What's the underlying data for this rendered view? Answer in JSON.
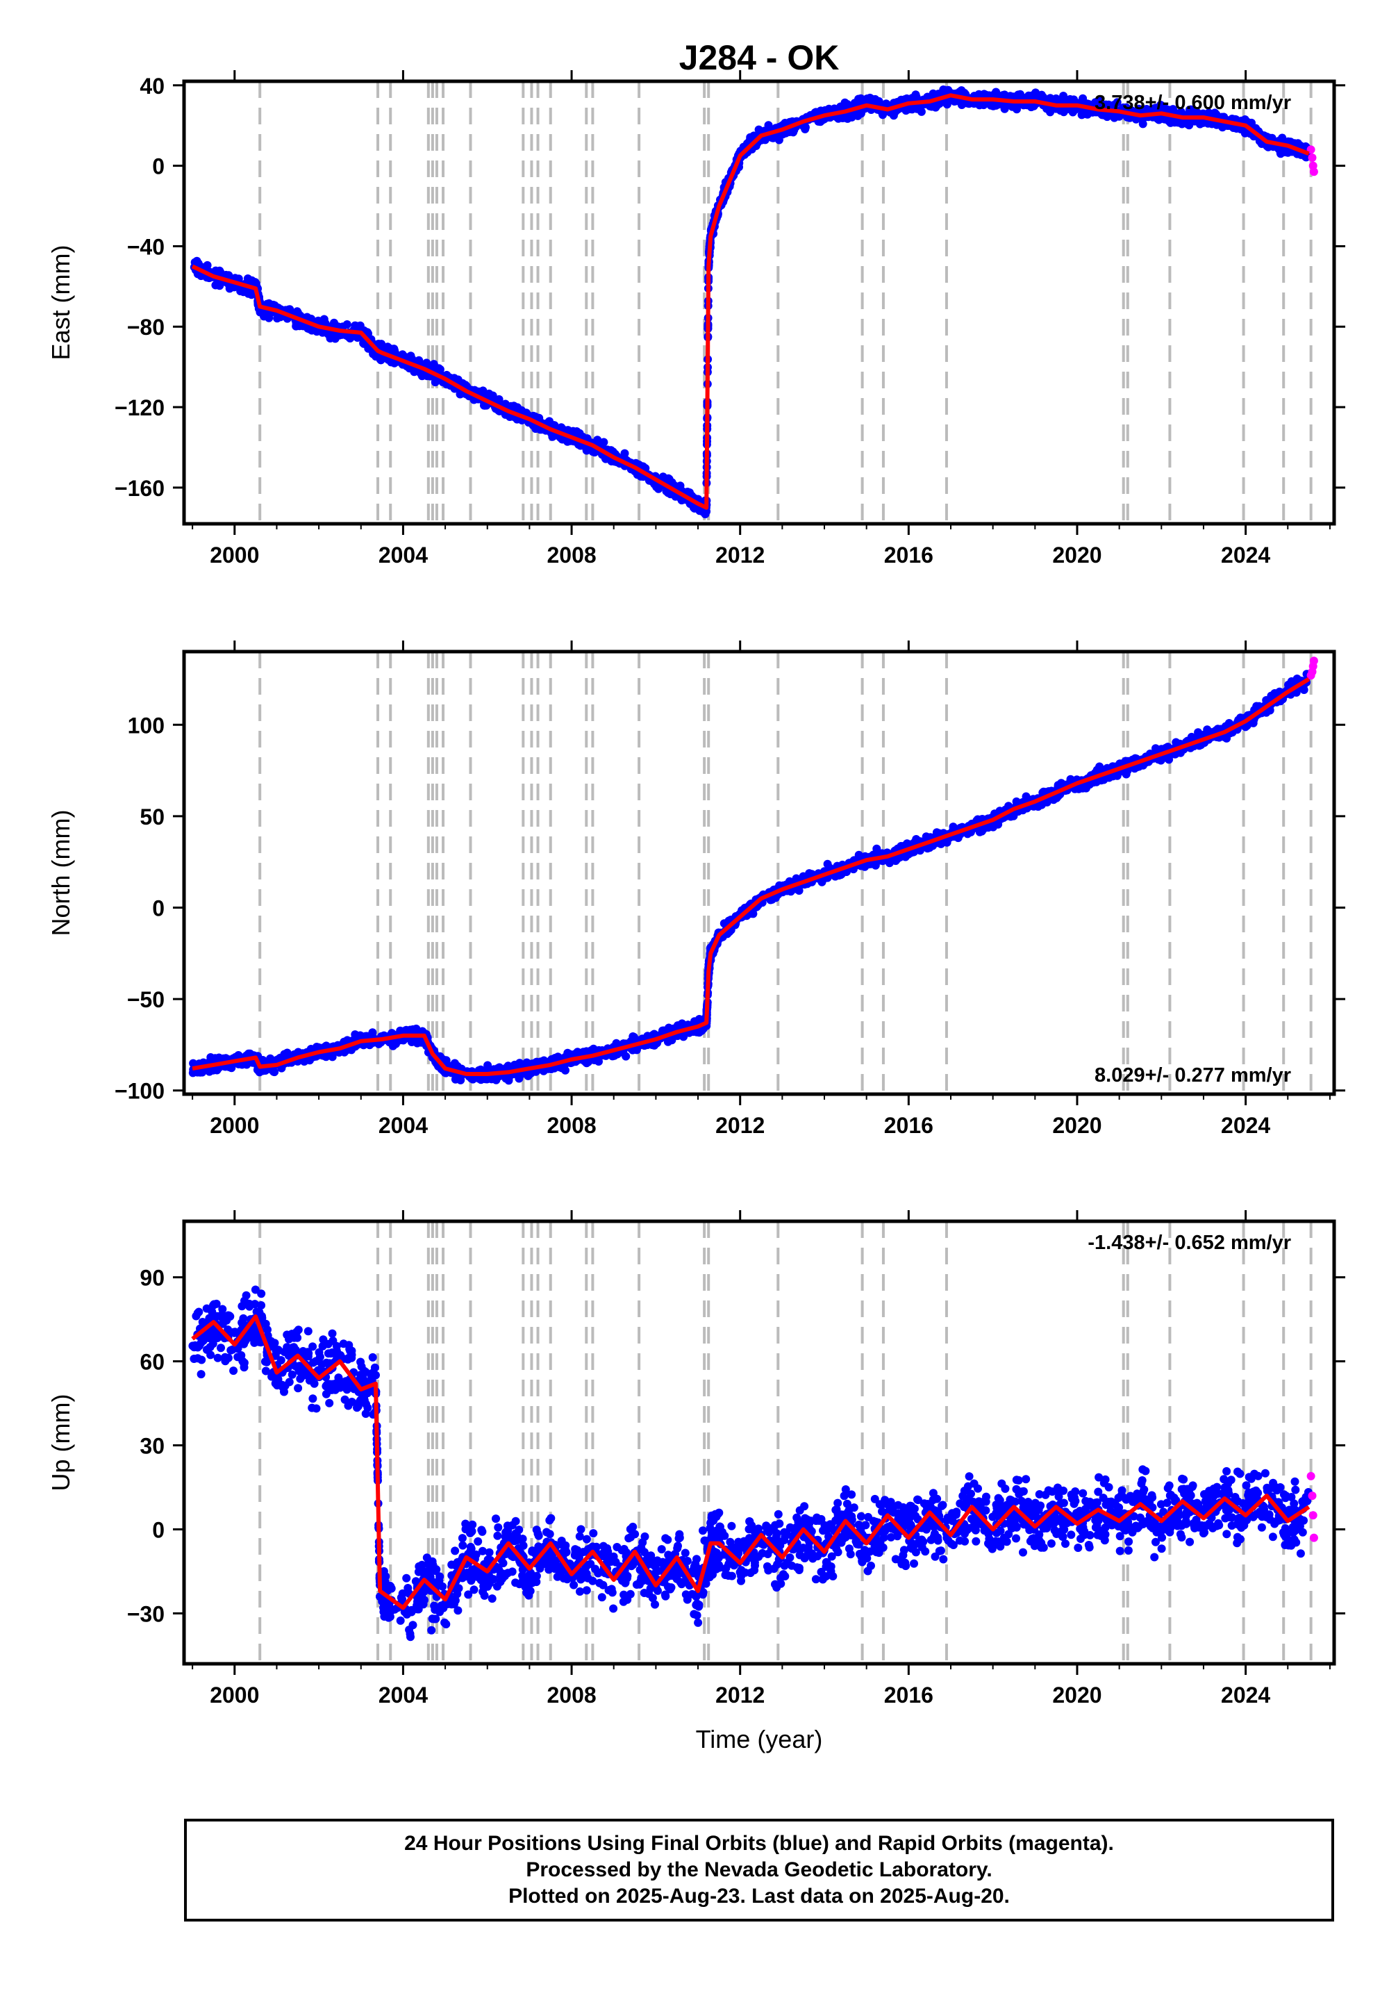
{
  "title": "J284 - OK",
  "xlabel": "Time (year)",
  "footer": {
    "line1": "24 Hour Positions Using Final Orbits (blue) and Rapid Orbits (magenta).",
    "line2": "Processed by the Nevada Geodetic Laboratory.",
    "line3": "Plotted on 2025-Aug-23. Last data on 2025-Aug-20."
  },
  "colors": {
    "final_orbits": "#0000ff",
    "rapid_orbits": "#ff00ff",
    "model": "#ff0000",
    "event_lines": "#bbbbbb"
  },
  "chart_data": [
    {
      "type": "scatter",
      "ylabel": "East (mm)",
      "rate_label": "3.738+/- 0.600 mm/yr",
      "rate_position": "top-right",
      "xlim": [
        1998.8,
        2026.1
      ],
      "ylim": [
        -178,
        42
      ],
      "x_ticks": [
        2000,
        2004,
        2008,
        2012,
        2016,
        2020,
        2024
      ],
      "y_ticks": [
        40,
        0,
        -40,
        -80,
        -120,
        -160
      ],
      "y_tick_labels": [
        "40",
        "0",
        "−40",
        "−80",
        "−120",
        "−160"
      ],
      "event_lines": [
        2000.6,
        2003.4,
        2003.7,
        2004.6,
        2004.7,
        2004.8,
        2004.95,
        2005.6,
        2006.85,
        2007.05,
        2007.2,
        2007.5,
        2008.35,
        2008.5,
        2009.6,
        2011.15,
        2011.25,
        2012.9,
        2014.9,
        2015.4,
        2016.9,
        2021.1,
        2021.2,
        2022.2,
        2023.95,
        2024.9,
        2025.55
      ],
      "series": [
        {
          "name": "Final Orbits (blue)",
          "color": "#0000ff",
          "x": [
            1999.0,
            1999.5,
            2000.0,
            2000.5,
            2000.6,
            2001.0,
            2001.5,
            2002.0,
            2002.5,
            2003.0,
            2003.4,
            2003.5,
            2004.0,
            2004.5,
            2005.0,
            2005.5,
            2006.0,
            2006.5,
            2007.0,
            2007.5,
            2008.0,
            2008.5,
            2009.0,
            2009.5,
            2010.0,
            2010.5,
            2011.0,
            2011.2,
            2011.25,
            2011.3,
            2011.5,
            2011.8,
            2012.0,
            2012.5,
            2013.0,
            2013.5,
            2014.0,
            2014.5,
            2015.0,
            2015.5,
            2016.0,
            2016.5,
            2017.0,
            2017.5,
            2018.0,
            2018.5,
            2019.0,
            2019.5,
            2020.0,
            2020.5,
            2021.0,
            2021.5,
            2022.0,
            2022.5,
            2023.0,
            2023.5,
            2024.0,
            2024.5,
            2025.0,
            2025.5
          ],
          "y": [
            -50,
            -55,
            -58,
            -61,
            -70,
            -72,
            -76,
            -80,
            -82,
            -83,
            -92,
            -93,
            -97,
            -101,
            -106,
            -112,
            -117,
            -122,
            -126,
            -131,
            -135,
            -139,
            -145,
            -150,
            -156,
            -162,
            -168,
            -170,
            -50,
            -35,
            -20,
            -5,
            5,
            15,
            18,
            22,
            25,
            27,
            30,
            28,
            31,
            32,
            35,
            33,
            33,
            32,
            32,
            30,
            30,
            28,
            27,
            25,
            26,
            24,
            24,
            22,
            20,
            12,
            10,
            6
          ]
        },
        {
          "name": "Rapid Orbits (magenta)",
          "color": "#ff00ff",
          "x": [
            2025.55,
            2025.58,
            2025.6,
            2025.62
          ],
          "y": [
            8,
            4,
            0,
            -3
          ]
        }
      ]
    },
    {
      "type": "scatter",
      "ylabel": "North (mm)",
      "rate_label": "8.029+/- 0.277 mm/yr",
      "rate_position": "bottom-right",
      "xlim": [
        1998.8,
        2026.1
      ],
      "ylim": [
        -102,
        140
      ],
      "x_ticks": [
        2000,
        2004,
        2008,
        2012,
        2016,
        2020,
        2024
      ],
      "y_ticks": [
        100,
        50,
        0,
        -50,
        -100
      ],
      "y_tick_labels": [
        "100",
        "50",
        "0",
        "−50",
        "−100"
      ],
      "event_lines": [
        2000.6,
        2003.4,
        2003.7,
        2004.6,
        2004.7,
        2004.8,
        2004.95,
        2005.6,
        2006.85,
        2007.05,
        2007.2,
        2007.5,
        2008.35,
        2008.5,
        2009.6,
        2011.15,
        2011.25,
        2012.9,
        2014.9,
        2015.4,
        2016.9,
        2021.1,
        2021.2,
        2022.2,
        2023.95,
        2024.9,
        2025.55
      ],
      "series": [
        {
          "name": "Final Orbits (blue)",
          "color": "#0000ff",
          "x": [
            1999.0,
            1999.5,
            2000.0,
            2000.5,
            2000.6,
            2001.0,
            2001.5,
            2002.0,
            2002.5,
            2003.0,
            2003.5,
            2004.0,
            2004.5,
            2004.7,
            2005.0,
            2005.5,
            2006.0,
            2006.5,
            2007.0,
            2007.5,
            2008.0,
            2008.5,
            2009.0,
            2009.5,
            2010.0,
            2010.5,
            2011.0,
            2011.2,
            2011.25,
            2011.3,
            2011.5,
            2012.0,
            2012.5,
            2013.0,
            2013.5,
            2014.0,
            2014.5,
            2015.0,
            2015.5,
            2016.0,
            2016.5,
            2017.0,
            2017.5,
            2018.0,
            2018.5,
            2019.0,
            2019.5,
            2020.0,
            2020.5,
            2021.0,
            2021.5,
            2022.0,
            2022.5,
            2023.0,
            2023.5,
            2024.0,
            2024.5,
            2025.0,
            2025.5
          ],
          "y": [
            -88,
            -86,
            -84,
            -82,
            -87,
            -86,
            -82,
            -79,
            -77,
            -73,
            -72,
            -70,
            -70,
            -80,
            -88,
            -91,
            -91,
            -90,
            -88,
            -86,
            -83,
            -81,
            -78,
            -75,
            -72,
            -68,
            -65,
            -63,
            -35,
            -25,
            -15,
            -5,
            5,
            10,
            14,
            18,
            22,
            26,
            28,
            32,
            36,
            40,
            44,
            48,
            54,
            58,
            63,
            68,
            72,
            76,
            80,
            84,
            88,
            92,
            96,
            102,
            110,
            118,
            125
          ]
        },
        {
          "name": "Rapid Orbits (magenta)",
          "color": "#ff00ff",
          "x": [
            2025.55,
            2025.58,
            2025.6,
            2025.62
          ],
          "y": [
            127,
            129,
            132,
            135
          ]
        }
      ]
    },
    {
      "type": "scatter",
      "ylabel": "Up (mm)",
      "rate_label": "-1.438+/- 0.652 mm/yr",
      "rate_position": "top-right",
      "xlim": [
        1998.8,
        2026.1
      ],
      "ylim": [
        -48,
        110
      ],
      "x_ticks": [
        2000,
        2004,
        2008,
        2012,
        2016,
        2020,
        2024
      ],
      "y_ticks": [
        90,
        60,
        30,
        0,
        -30
      ],
      "y_tick_labels": [
        "90",
        "60",
        "30",
        "0",
        "−30"
      ],
      "event_lines": [
        2000.6,
        2003.4,
        2003.7,
        2004.6,
        2004.7,
        2004.8,
        2004.95,
        2005.6,
        2006.85,
        2007.05,
        2007.2,
        2007.5,
        2008.35,
        2008.5,
        2009.6,
        2011.15,
        2011.25,
        2012.9,
        2014.9,
        2015.4,
        2016.9,
        2021.1,
        2021.2,
        2022.2,
        2023.95,
        2024.9,
        2025.55
      ],
      "series": [
        {
          "name": "Final Orbits (blue)",
          "color": "#0000ff",
          "x": [
            1999.0,
            1999.5,
            2000.0,
            2000.5,
            2001.0,
            2001.5,
            2002.0,
            2002.5,
            2003.0,
            2003.35,
            2003.45,
            2004.0,
            2004.5,
            2005.0,
            2005.5,
            2006.0,
            2006.5,
            2007.0,
            2007.5,
            2008.0,
            2008.5,
            2009.0,
            2009.5,
            2010.0,
            2010.5,
            2011.0,
            2011.3,
            2011.5,
            2012.0,
            2012.5,
            2013.0,
            2013.5,
            2014.0,
            2014.5,
            2015.0,
            2015.5,
            2016.0,
            2016.5,
            2017.0,
            2017.5,
            2018.0,
            2018.5,
            2019.0,
            2019.5,
            2020.0,
            2020.5,
            2021.0,
            2021.5,
            2022.0,
            2022.5,
            2023.0,
            2023.5,
            2024.0,
            2024.5,
            2025.0,
            2025.5
          ],
          "y": [
            68,
            74,
            66,
            76,
            56,
            62,
            54,
            60,
            50,
            52,
            -22,
            -28,
            -18,
            -25,
            -10,
            -15,
            -5,
            -14,
            -5,
            -16,
            -8,
            -18,
            -8,
            -20,
            -10,
            -22,
            -5,
            -5,
            -12,
            -2,
            -10,
            0,
            -8,
            3,
            -5,
            5,
            -3,
            6,
            -2,
            8,
            0,
            8,
            1,
            8,
            2,
            7,
            3,
            9,
            3,
            10,
            4,
            11,
            5,
            12,
            3,
            8
          ]
        },
        {
          "name": "Rapid Orbits (magenta)",
          "color": "#ff00ff",
          "x": [
            2025.55,
            2025.58,
            2025.6,
            2025.62
          ],
          "y": [
            19,
            12,
            5,
            -3
          ]
        }
      ]
    }
  ]
}
